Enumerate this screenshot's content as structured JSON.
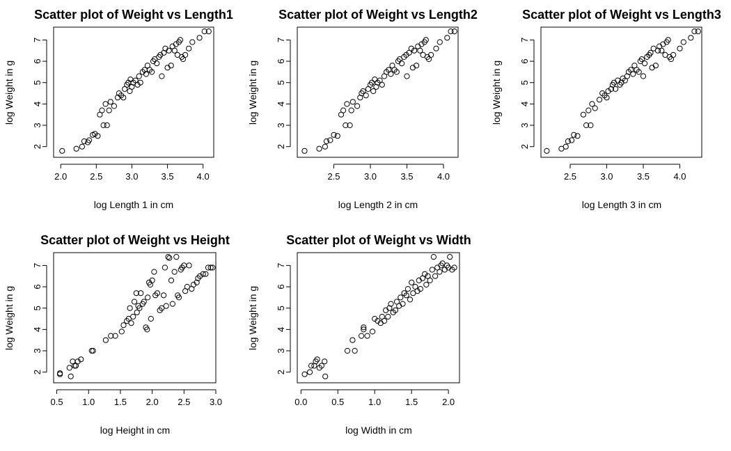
{
  "chart_data": [
    {
      "type": "scatter",
      "title": "Scatter plot of Weight vs Length1",
      "xlabel": "log Length 1 in cm",
      "ylabel": "log Weight in g",
      "xlim": [
        1.9,
        4.15
      ],
      "ylim": [
        1.5,
        7.6
      ],
      "xticks": [
        "2.0",
        "2.5",
        "3.0",
        "3.5",
        "4.0"
      ],
      "yticks": [
        "2",
        "3",
        "4",
        "5",
        "6",
        "7"
      ],
      "points": [
        [
          2.02,
          1.8
        ],
        [
          2.22,
          1.9
        ],
        [
          2.3,
          2.0
        ],
        [
          2.33,
          2.25
        ],
        [
          2.38,
          2.2
        ],
        [
          2.4,
          2.3
        ],
        [
          2.45,
          2.55
        ],
        [
          2.48,
          2.6
        ],
        [
          2.52,
          2.5
        ],
        [
          2.55,
          3.5
        ],
        [
          2.58,
          3.7
        ],
        [
          2.6,
          3.0
        ],
        [
          2.63,
          4.0
        ],
        [
          2.65,
          3.0
        ],
        [
          2.68,
          3.7
        ],
        [
          2.7,
          4.1
        ],
        [
          2.75,
          3.9
        ],
        [
          2.8,
          4.3
        ],
        [
          2.82,
          4.5
        ],
        [
          2.85,
          4.4
        ],
        [
          2.88,
          4.3
        ],
        [
          2.9,
          4.7
        ],
        [
          2.93,
          4.9
        ],
        [
          2.95,
          5.0
        ],
        [
          2.97,
          4.6
        ],
        [
          2.98,
          5.15
        ],
        [
          3.0,
          4.8
        ],
        [
          3.02,
          5.0
        ],
        [
          3.05,
          5.1
        ],
        [
          3.08,
          4.9
        ],
        [
          3.1,
          5.3
        ],
        [
          3.12,
          5.0
        ],
        [
          3.15,
          5.5
        ],
        [
          3.18,
          5.6
        ],
        [
          3.2,
          5.4
        ],
        [
          3.22,
          5.8
        ],
        [
          3.25,
          5.6
        ],
        [
          3.28,
          5.5
        ],
        [
          3.3,
          6.0
        ],
        [
          3.32,
          6.1
        ],
        [
          3.35,
          5.9
        ],
        [
          3.38,
          6.2
        ],
        [
          3.4,
          6.3
        ],
        [
          3.42,
          5.3
        ],
        [
          3.45,
          6.4
        ],
        [
          3.47,
          6.6
        ],
        [
          3.5,
          5.7
        ],
        [
          3.52,
          6.5
        ],
        [
          3.55,
          5.8
        ],
        [
          3.57,
          6.7
        ],
        [
          3.6,
          6.5
        ],
        [
          3.62,
          6.8
        ],
        [
          3.64,
          6.3
        ],
        [
          3.66,
          6.9
        ],
        [
          3.68,
          7.0
        ],
        [
          3.7,
          6.2
        ],
        [
          3.72,
          6.1
        ],
        [
          3.75,
          6.3
        ],
        [
          3.8,
          6.6
        ],
        [
          3.85,
          6.9
        ],
        [
          3.95,
          7.1
        ],
        [
          4.02,
          7.4
        ],
        [
          4.08,
          7.4
        ]
      ]
    },
    {
      "type": "scatter",
      "title": "Scatter plot of Weight vs Length2",
      "xlabel": "log Length 2 in cm",
      "ylabel": "log Weight in g",
      "xlim": [
        2.0,
        4.2
      ],
      "ylim": [
        1.5,
        7.6
      ],
      "xticks": [
        "2.5",
        "3.0",
        "3.5",
        "4.0"
      ],
      "yticks": [
        "2",
        "3",
        "4",
        "5",
        "6",
        "7"
      ],
      "points": [
        [
          2.1,
          1.8
        ],
        [
          2.3,
          1.9
        ],
        [
          2.38,
          2.0
        ],
        [
          2.4,
          2.25
        ],
        [
          2.45,
          2.3
        ],
        [
          2.5,
          2.55
        ],
        [
          2.55,
          2.5
        ],
        [
          2.6,
          3.5
        ],
        [
          2.63,
          3.7
        ],
        [
          2.66,
          3.0
        ],
        [
          2.68,
          4.0
        ],
        [
          2.72,
          3.0
        ],
        [
          2.74,
          3.7
        ],
        [
          2.76,
          4.1
        ],
        [
          2.82,
          3.9
        ],
        [
          2.86,
          4.3
        ],
        [
          2.88,
          4.5
        ],
        [
          2.9,
          4.6
        ],
        [
          2.94,
          4.4
        ],
        [
          2.97,
          4.7
        ],
        [
          3.0,
          4.9
        ],
        [
          3.02,
          5.0
        ],
        [
          3.04,
          4.6
        ],
        [
          3.06,
          5.15
        ],
        [
          3.08,
          4.8
        ],
        [
          3.1,
          5.0
        ],
        [
          3.13,
          5.1
        ],
        [
          3.16,
          4.9
        ],
        [
          3.19,
          5.3
        ],
        [
          3.22,
          5.5
        ],
        [
          3.25,
          5.6
        ],
        [
          3.28,
          5.4
        ],
        [
          3.3,
          5.8
        ],
        [
          3.33,
          5.6
        ],
        [
          3.36,
          5.5
        ],
        [
          3.38,
          6.0
        ],
        [
          3.4,
          6.1
        ],
        [
          3.43,
          5.9
        ],
        [
          3.46,
          6.2
        ],
        [
          3.49,
          6.3
        ],
        [
          3.5,
          5.3
        ],
        [
          3.53,
          6.4
        ],
        [
          3.56,
          6.6
        ],
        [
          3.58,
          5.7
        ],
        [
          3.6,
          6.5
        ],
        [
          3.63,
          5.8
        ],
        [
          3.65,
          6.7
        ],
        [
          3.68,
          6.5
        ],
        [
          3.7,
          6.8
        ],
        [
          3.72,
          6.3
        ],
        [
          3.74,
          6.9
        ],
        [
          3.76,
          7.0
        ],
        [
          3.78,
          6.2
        ],
        [
          3.8,
          6.1
        ],
        [
          3.83,
          6.3
        ],
        [
          3.9,
          6.6
        ],
        [
          3.95,
          6.9
        ],
        [
          4.05,
          7.1
        ],
        [
          4.1,
          7.4
        ],
        [
          4.15,
          7.4
        ]
      ]
    },
    {
      "type": "scatter",
      "title": "Scatter plot of Weight vs Length3",
      "xlabel": "log Length 3 in cm",
      "ylabel": "log Weight in g",
      "xlim": [
        2.1,
        4.3
      ],
      "ylim": [
        1.5,
        7.6
      ],
      "xticks": [
        "2.5",
        "3.0",
        "3.5",
        "4.0"
      ],
      "yticks": [
        "2",
        "3",
        "4",
        "5",
        "6",
        "7"
      ],
      "points": [
        [
          2.18,
          1.8
        ],
        [
          2.38,
          1.9
        ],
        [
          2.44,
          2.0
        ],
        [
          2.47,
          2.25
        ],
        [
          2.52,
          2.3
        ],
        [
          2.55,
          2.55
        ],
        [
          2.6,
          2.5
        ],
        [
          2.68,
          3.5
        ],
        [
          2.72,
          3.0
        ],
        [
          2.75,
          3.7
        ],
        [
          2.78,
          3.0
        ],
        [
          2.8,
          4.0
        ],
        [
          2.84,
          3.8
        ],
        [
          2.9,
          4.2
        ],
        [
          2.94,
          4.5
        ],
        [
          2.97,
          4.4
        ],
        [
          3.0,
          4.3
        ],
        [
          3.02,
          4.6
        ],
        [
          3.06,
          4.7
        ],
        [
          3.08,
          4.9
        ],
        [
          3.1,
          5.0
        ],
        [
          3.12,
          4.7
        ],
        [
          3.15,
          5.1
        ],
        [
          3.18,
          4.9
        ],
        [
          3.2,
          5.0
        ],
        [
          3.22,
          5.2
        ],
        [
          3.25,
          5.1
        ],
        [
          3.28,
          5.3
        ],
        [
          3.3,
          5.5
        ],
        [
          3.33,
          5.6
        ],
        [
          3.36,
          5.4
        ],
        [
          3.38,
          5.8
        ],
        [
          3.41,
          5.6
        ],
        [
          3.44,
          5.5
        ],
        [
          3.46,
          6.0
        ],
        [
          3.48,
          6.1
        ],
        [
          3.5,
          5.3
        ],
        [
          3.52,
          5.9
        ],
        [
          3.55,
          6.2
        ],
        [
          3.58,
          6.3
        ],
        [
          3.6,
          6.4
        ],
        [
          3.62,
          5.7
        ],
        [
          3.64,
          6.6
        ],
        [
          3.67,
          5.8
        ],
        [
          3.7,
          6.5
        ],
        [
          3.72,
          6.7
        ],
        [
          3.75,
          6.5
        ],
        [
          3.77,
          6.8
        ],
        [
          3.8,
          6.3
        ],
        [
          3.82,
          6.9
        ],
        [
          3.84,
          7.0
        ],
        [
          3.86,
          6.2
        ],
        [
          3.88,
          6.1
        ],
        [
          3.91,
          6.3
        ],
        [
          4.0,
          6.6
        ],
        [
          4.05,
          6.9
        ],
        [
          4.15,
          7.1
        ],
        [
          4.2,
          7.4
        ],
        [
          4.25,
          7.4
        ]
      ]
    },
    {
      "type": "scatter",
      "title": "Scatter plot of Weight vs Height",
      "xlabel": "log Height in cm",
      "ylabel": "log Weight in g",
      "xlim": [
        0.45,
        3.0
      ],
      "ylim": [
        1.5,
        7.6
      ],
      "xticks": [
        "0.5",
        "1.0",
        "1.5",
        "2.0",
        "2.5",
        "3.0"
      ],
      "yticks": [
        "2",
        "3",
        "4",
        "5",
        "6",
        "7"
      ],
      "points": [
        [
          0.55,
          1.9
        ],
        [
          0.55,
          1.95
        ],
        [
          0.7,
          2.2
        ],
        [
          0.72,
          1.8
        ],
        [
          0.75,
          2.5
        ],
        [
          0.78,
          2.3
        ],
        [
          0.8,
          2.3
        ],
        [
          0.83,
          2.5
        ],
        [
          0.88,
          2.6
        ],
        [
          1.05,
          3.0
        ],
        [
          1.07,
          3.0
        ],
        [
          1.27,
          3.5
        ],
        [
          1.35,
          3.7
        ],
        [
          1.42,
          3.7
        ],
        [
          1.52,
          3.9
        ],
        [
          1.55,
          4.2
        ],
        [
          1.6,
          4.4
        ],
        [
          1.63,
          4.5
        ],
        [
          1.65,
          5.0
        ],
        [
          1.67,
          4.3
        ],
        [
          1.7,
          4.6
        ],
        [
          1.72,
          5.3
        ],
        [
          1.75,
          5.7
        ],
        [
          1.76,
          4.8
        ],
        [
          1.78,
          5.1
        ],
        [
          1.8,
          5.0
        ],
        [
          1.82,
          5.7
        ],
        [
          1.85,
          5.2
        ],
        [
          1.87,
          5.3
        ],
        [
          1.9,
          4.1
        ],
        [
          1.92,
          4.0
        ],
        [
          1.93,
          5.5
        ],
        [
          1.95,
          6.2
        ],
        [
          1.97,
          6.1
        ],
        [
          1.98,
          4.5
        ],
        [
          2.0,
          6.3
        ],
        [
          2.03,
          6.7
        ],
        [
          2.05,
          5.6
        ],
        [
          2.08,
          5.7
        ],
        [
          2.12,
          4.9
        ],
        [
          2.15,
          5.0
        ],
        [
          2.18,
          5.6
        ],
        [
          2.2,
          6.9
        ],
        [
          2.22,
          5.1
        ],
        [
          2.25,
          7.4
        ],
        [
          2.27,
          7.35
        ],
        [
          2.3,
          6.3
        ],
        [
          2.32,
          5.2
        ],
        [
          2.35,
          6.7
        ],
        [
          2.38,
          7.4
        ],
        [
          2.4,
          5.6
        ],
        [
          2.42,
          5.5
        ],
        [
          2.45,
          6.8
        ],
        [
          2.47,
          6.9
        ],
        [
          2.5,
          7.0
        ],
        [
          2.52,
          5.8
        ],
        [
          2.55,
          6.0
        ],
        [
          2.58,
          7.0
        ],
        [
          2.62,
          5.9
        ],
        [
          2.65,
          6.1
        ],
        [
          2.7,
          6.2
        ],
        [
          2.72,
          6.4
        ],
        [
          2.75,
          6.5
        ],
        [
          2.8,
          6.6
        ],
        [
          2.84,
          6.6
        ],
        [
          2.88,
          6.9
        ],
        [
          2.92,
          6.9
        ],
        [
          2.95,
          6.9
        ]
      ]
    },
    {
      "type": "scatter",
      "title": "Scatter plot of Weight vs Width",
      "xlabel": "log Width in cm",
      "ylabel": "log Weight in g",
      "xlim": [
        -0.05,
        2.15
      ],
      "ylim": [
        1.5,
        7.6
      ],
      "xticks": [
        "0.0",
        "0.5",
        "1.0",
        "1.5",
        "2.0"
      ],
      "yticks": [
        "2",
        "3",
        "4",
        "5",
        "6",
        "7"
      ],
      "points": [
        [
          0.05,
          1.9
        ],
        [
          0.12,
          2.0
        ],
        [
          0.14,
          2.3
        ],
        [
          0.18,
          2.3
        ],
        [
          0.2,
          2.5
        ],
        [
          0.22,
          2.6
        ],
        [
          0.25,
          2.2
        ],
        [
          0.28,
          2.3
        ],
        [
          0.32,
          2.5
        ],
        [
          0.33,
          1.8
        ],
        [
          0.63,
          3.0
        ],
        [
          0.7,
          3.5
        ],
        [
          0.73,
          3.0
        ],
        [
          0.82,
          3.7
        ],
        [
          0.85,
          4.0
        ],
        [
          0.85,
          4.1
        ],
        [
          0.9,
          3.7
        ],
        [
          0.97,
          3.9
        ],
        [
          1.0,
          4.5
        ],
        [
          1.04,
          4.4
        ],
        [
          1.08,
          4.3
        ],
        [
          1.1,
          4.6
        ],
        [
          1.13,
          4.4
        ],
        [
          1.15,
          4.9
        ],
        [
          1.18,
          4.6
        ],
        [
          1.2,
          5.0
        ],
        [
          1.22,
          5.2
        ],
        [
          1.25,
          4.8
        ],
        [
          1.28,
          4.9
        ],
        [
          1.3,
          5.3
        ],
        [
          1.33,
          5.1
        ],
        [
          1.35,
          5.5
        ],
        [
          1.38,
          5.2
        ],
        [
          1.4,
          5.7
        ],
        [
          1.43,
          5.6
        ],
        [
          1.45,
          5.9
        ],
        [
          1.48,
          5.4
        ],
        [
          1.5,
          6.2
        ],
        [
          1.52,
          5.7
        ],
        [
          1.55,
          6.0
        ],
        [
          1.58,
          5.8
        ],
        [
          1.6,
          6.3
        ],
        [
          1.62,
          5.9
        ],
        [
          1.65,
          6.4
        ],
        [
          1.68,
          6.6
        ],
        [
          1.7,
          6.1
        ],
        [
          1.72,
          6.5
        ],
        [
          1.75,
          6.3
        ],
        [
          1.78,
          6.8
        ],
        [
          1.8,
          7.4
        ],
        [
          1.82,
          6.5
        ],
        [
          1.85,
          6.9
        ],
        [
          1.88,
          6.7
        ],
        [
          1.9,
          7.0
        ],
        [
          1.92,
          7.1
        ],
        [
          1.95,
          6.8
        ],
        [
          1.98,
          7.0
        ],
        [
          2.0,
          6.9
        ],
        [
          2.02,
          7.4
        ],
        [
          2.05,
          6.8
        ],
        [
          2.08,
          6.9
        ]
      ]
    }
  ]
}
